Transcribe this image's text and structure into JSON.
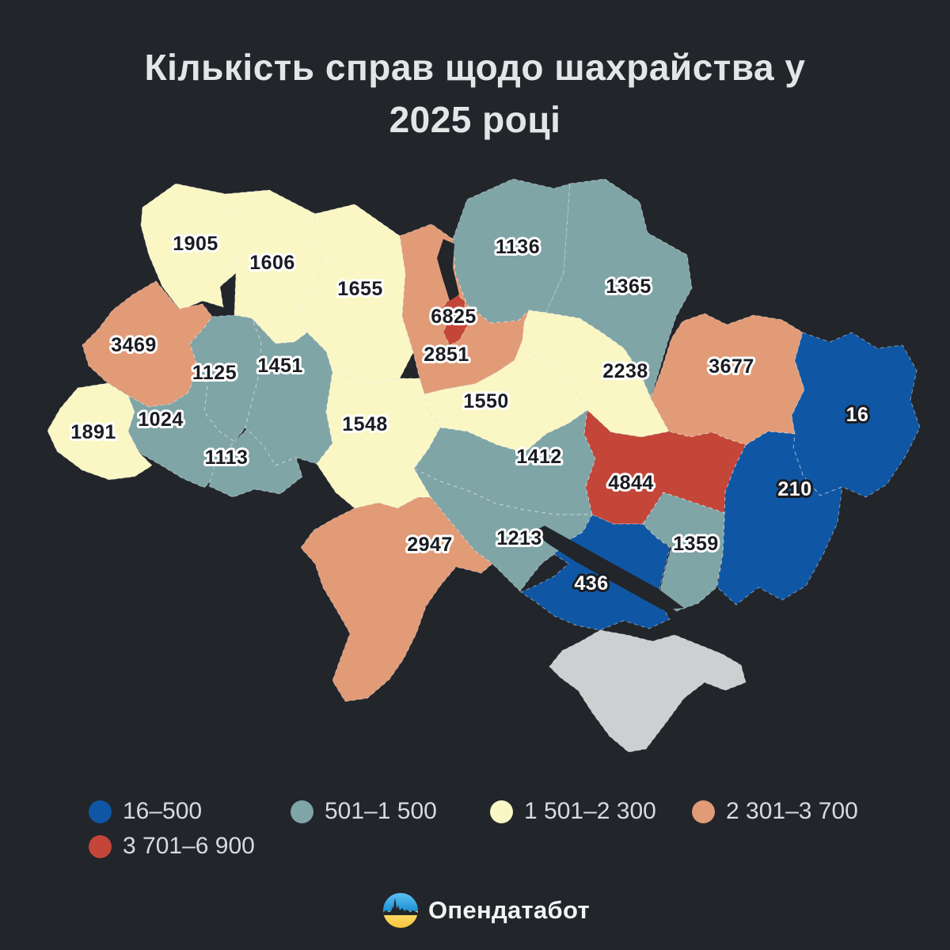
{
  "title": "Кількість справ щодо шахрайства у 2025 році",
  "colors": {
    "blue": "#0f57a4",
    "teal": "#7fa5a7",
    "yellow": "#faf7c5",
    "orange": "#e19b77",
    "red": "#c34639",
    "nodata": "#cdcfd1",
    "background": "#22252a",
    "title_text": "#e4e5e7",
    "legend_text": "#d8dade"
  },
  "legend": [
    {
      "label": "16–500",
      "color": "blue"
    },
    {
      "label": "501–1 500",
      "color": "teal"
    },
    {
      "label": "1 501–2 300",
      "color": "yellow"
    },
    {
      "label": "2 301–3 700",
      "color": "orange"
    },
    {
      "label": "3 701–6 900",
      "color": "red"
    }
  ],
  "footer": {
    "brand": "Опендатабот"
  },
  "chart_data": {
    "type": "heatmap",
    "subtype": "choropleth-map-of-ukraine",
    "title": "Кількість справ щодо шахрайства у 2025 році",
    "legend_position": "bottom",
    "bins": [
      "16–500",
      "501–1 500",
      "1 501–2 300",
      "2 301–3 700",
      "3 701–6 900"
    ],
    "regions": [
      {
        "id": "volyn",
        "value": 1905,
        "color": "yellow"
      },
      {
        "id": "rivne",
        "value": 1606,
        "color": "yellow"
      },
      {
        "id": "zhytomyr",
        "value": 1655,
        "color": "yellow"
      },
      {
        "id": "chernihiv",
        "value": 1136,
        "color": "teal"
      },
      {
        "id": "sumy",
        "value": 1365,
        "color": "teal"
      },
      {
        "id": "kyiv-oblast",
        "value": 2851,
        "color": "orange"
      },
      {
        "id": "kyiv-city",
        "value": 6825,
        "color": "red"
      },
      {
        "id": "lviv",
        "value": 3469,
        "color": "orange"
      },
      {
        "id": "ternopil",
        "value": 1125,
        "color": "teal"
      },
      {
        "id": "khmelnytskyi",
        "value": 1451,
        "color": "teal"
      },
      {
        "id": "zakarpattia",
        "value": 1891,
        "color": "yellow"
      },
      {
        "id": "ivano-frankivsk",
        "value": 1024,
        "color": "teal"
      },
      {
        "id": "chernivtsi",
        "value": 1113,
        "color": "teal"
      },
      {
        "id": "vinnytsia",
        "value": 1548,
        "color": "yellow"
      },
      {
        "id": "cherkasy",
        "value": 1550,
        "color": "yellow"
      },
      {
        "id": "poltava",
        "value": 2238,
        "color": "yellow"
      },
      {
        "id": "kharkiv",
        "value": 3677,
        "color": "orange"
      },
      {
        "id": "kirovohrad",
        "value": 1412,
        "color": "teal"
      },
      {
        "id": "dnipropetrovsk",
        "value": 4844,
        "color": "red"
      },
      {
        "id": "luhansk",
        "value": 16,
        "color": "blue"
      },
      {
        "id": "donetsk",
        "value": 210,
        "color": "blue"
      },
      {
        "id": "zaporizhzhia",
        "value": 1359,
        "color": "teal"
      },
      {
        "id": "kherson",
        "value": 436,
        "color": "blue"
      },
      {
        "id": "mykolaiv",
        "value": 1213,
        "color": "teal"
      },
      {
        "id": "odesa",
        "value": 2947,
        "color": "orange"
      },
      {
        "id": "crimea",
        "value": null,
        "color": "nodata"
      }
    ]
  }
}
